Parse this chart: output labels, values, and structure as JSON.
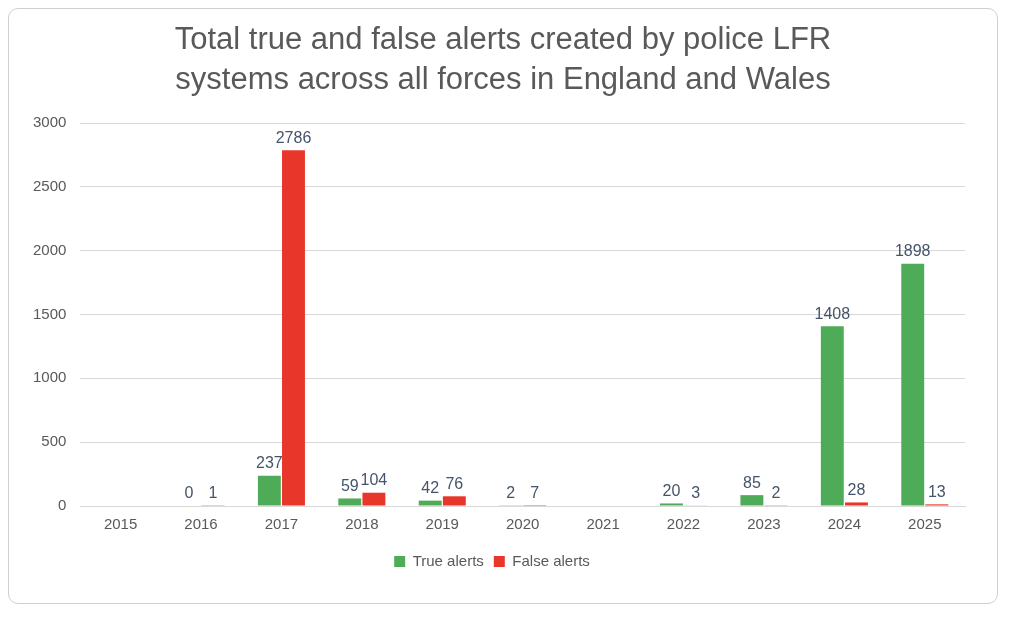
{
  "chart_data": {
    "type": "bar",
    "title": "Total true and false alerts created by police LFR systems across all forces in England and Wales",
    "categories": [
      "2015",
      "2016",
      "2017",
      "2018",
      "2019",
      "2020",
      "2021",
      "2022",
      "2023",
      "2024",
      "2025"
    ],
    "series": [
      {
        "name": "True alerts",
        "color": "#4eab58",
        "values": [
          null,
          0,
          237,
          59,
          42,
          2,
          null,
          20,
          85,
          1408,
          1898
        ]
      },
      {
        "name": "False alerts",
        "color": "#e8372a",
        "values": [
          null,
          1,
          2786,
          104,
          76,
          7,
          null,
          3,
          2,
          28,
          13
        ]
      }
    ],
    "ylim": [
      0,
      3000
    ],
    "yticks": [
      0,
      500,
      1000,
      1500,
      2000,
      2500,
      3000
    ],
    "grid": "y",
    "legend": "bottom",
    "data_labels": true
  }
}
